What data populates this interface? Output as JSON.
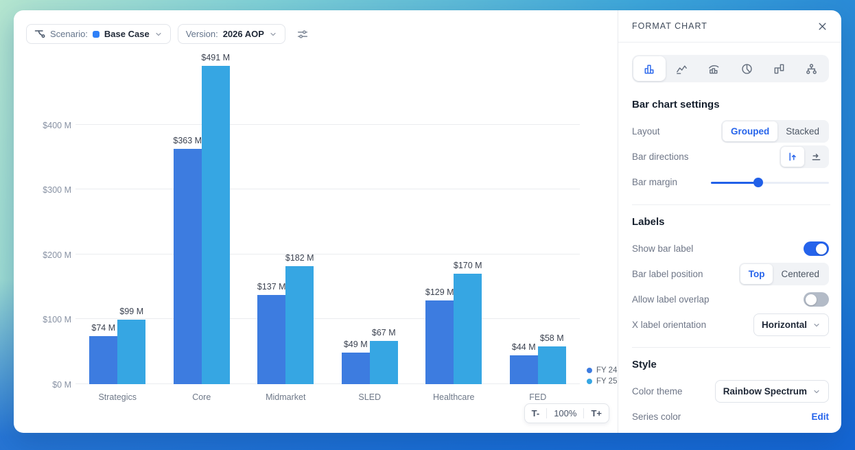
{
  "toolbar": {
    "scenario_label": "Scenario:",
    "scenario_value": "Base Case",
    "scenario_swatch_color": "#2f80f7",
    "version_label": "Version:",
    "version_value": "2026 AOP"
  },
  "chart_data": {
    "type": "bar",
    "layout": "grouped",
    "categories": [
      "Strategics",
      "Core",
      "Midmarket",
      "SLED",
      "Healthcare",
      "FED"
    ],
    "series": [
      {
        "name": "FY 24",
        "color": "#3d7ce0",
        "values": [
          74,
          363,
          137,
          49,
          129,
          44
        ]
      },
      {
        "name": "FY 25",
        "color": "#36a6e3",
        "values": [
          99,
          491,
          182,
          67,
          170,
          58
        ]
      }
    ],
    "value_prefix": "$",
    "value_suffix": " M",
    "y_ticks": [
      0,
      100,
      200,
      300,
      400
    ],
    "y_tick_labels": [
      "$0 M",
      "$100 M",
      "$200 M",
      "$300 M",
      "$400 M"
    ],
    "ylim": [
      0,
      500
    ],
    "grid": true,
    "bar_labels_visible": true,
    "legend_position": "bottom-right"
  },
  "zoom_controls": {
    "out": "T-",
    "level": "100%",
    "in": "T+"
  },
  "format_panel": {
    "title": "FORMAT CHART",
    "selected_tab": 0,
    "tab_icons": [
      "bar-chart-icon",
      "line-chart-icon",
      "combo-chart-icon",
      "pie-chart-icon",
      "waterfall-chart-icon",
      "tree-chart-icon"
    ],
    "bar_settings": {
      "heading": "Bar chart settings",
      "layout_label": "Layout",
      "layout_options": [
        "Grouped",
        "Stacked"
      ],
      "layout_selected": "Grouped",
      "directions_label": "Bar directions",
      "directions_selected": "vertical",
      "margin_label": "Bar margin",
      "margin_percent": 40
    },
    "labels": {
      "heading": "Labels",
      "show_bar_label": "Show bar label",
      "show_bar_label_on": true,
      "position_label": "Bar label position",
      "position_options": [
        "Top",
        "Centered"
      ],
      "position_selected": "Top",
      "overlap_label": "Allow label overlap",
      "overlap_on": false,
      "orientation_label": "X label orientation",
      "orientation_value": "Horizontal"
    },
    "style": {
      "heading": "Style",
      "color_theme_label": "Color theme",
      "color_theme_value": "Rainbow Spectrum",
      "series_color_label": "Series color",
      "series_color_action": "Edit"
    }
  },
  "icons": {
    "scenario": "scenario-branch-icon",
    "filter": "filter-sliders-icon",
    "close": "close-icon",
    "chevron": "chevron-down-icon",
    "bar_direction_vertical": "bars-vertical-icon",
    "bar_direction_horizontal": "bars-horizontal-icon"
  }
}
